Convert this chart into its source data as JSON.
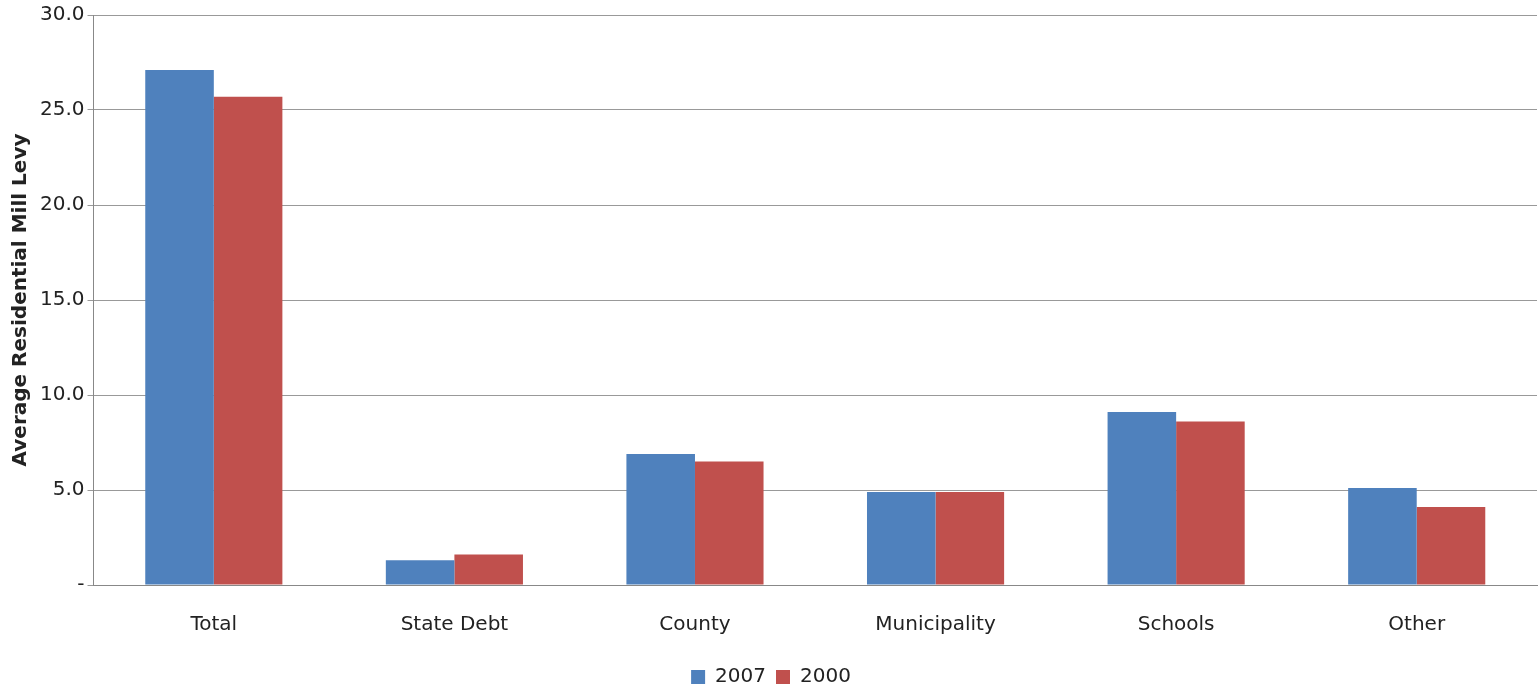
{
  "chart_data": {
    "type": "bar",
    "ylabel": "Average Residential Mill Levy",
    "categories": [
      "Total",
      "State Debt",
      "County",
      "Municipality",
      "Schools",
      "Other"
    ],
    "series": [
      {
        "name": "2007",
        "color": "#4f81bd",
        "values": [
          27.1,
          1.3,
          6.9,
          4.9,
          9.1,
          5.1
        ]
      },
      {
        "name": "2000",
        "color": "#c0504d",
        "values": [
          25.7,
          1.6,
          6.5,
          4.9,
          8.6,
          4.1
        ]
      }
    ],
    "ylim": [
      0,
      30
    ],
    "yticks": [
      {
        "value": 0,
        "label": "-"
      },
      {
        "value": 5,
        "label": "5.0"
      },
      {
        "value": 10,
        "label": "10.0"
      },
      {
        "value": 15,
        "label": "15.0"
      },
      {
        "value": 20,
        "label": "20.0"
      },
      {
        "value": 25,
        "label": "25.0"
      },
      {
        "value": 30,
        "label": "30.0"
      }
    ],
    "grid": "y",
    "legend": "bottom"
  }
}
